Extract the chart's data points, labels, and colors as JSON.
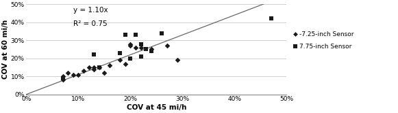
{
  "title": "",
  "xlabel": "COV at 45 mi/h",
  "ylabel": "COV at 60 mi/h",
  "xlim": [
    0,
    0.5
  ],
  "ylim": [
    0,
    0.5
  ],
  "xticks": [
    0.0,
    0.1,
    0.2,
    0.3,
    0.4,
    0.5
  ],
  "yticks": [
    0.0,
    0.1,
    0.2,
    0.3,
    0.4,
    0.5
  ],
  "equation_text": "y = 1.10x",
  "r2_text": "R² = 0.75",
  "slope": 1.1,
  "line_x_start": 0.0,
  "line_x_end": 0.5,
  "diamond_x": [
    0.07,
    0.07,
    0.08,
    0.09,
    0.1,
    0.11,
    0.12,
    0.13,
    0.13,
    0.14,
    0.15,
    0.16,
    0.18,
    0.19,
    0.2,
    0.2,
    0.21,
    0.22,
    0.24,
    0.27,
    0.29
  ],
  "diamond_y": [
    0.08,
    0.1,
    0.12,
    0.11,
    0.11,
    0.13,
    0.15,
    0.14,
    0.15,
    0.15,
    0.12,
    0.16,
    0.19,
    0.17,
    0.27,
    0.28,
    0.26,
    0.26,
    0.25,
    0.27,
    0.19
  ],
  "square_x": [
    0.07,
    0.13,
    0.14,
    0.18,
    0.19,
    0.2,
    0.21,
    0.22,
    0.22,
    0.23,
    0.24,
    0.26,
    0.47
  ],
  "square_y": [
    0.09,
    0.22,
    0.15,
    0.23,
    0.33,
    0.2,
    0.33,
    0.28,
    0.21,
    0.25,
    0.24,
    0.34,
    0.42
  ],
  "marker_color": "#1a1a1a",
  "line_color": "#666666",
  "background_color": "#ffffff",
  "legend_diamond_label": "-7.25-inch Sensor",
  "legend_square_label": "7.75-inch Sensor",
  "figsize": [
    5.81,
    1.66
  ],
  "dpi": 100
}
